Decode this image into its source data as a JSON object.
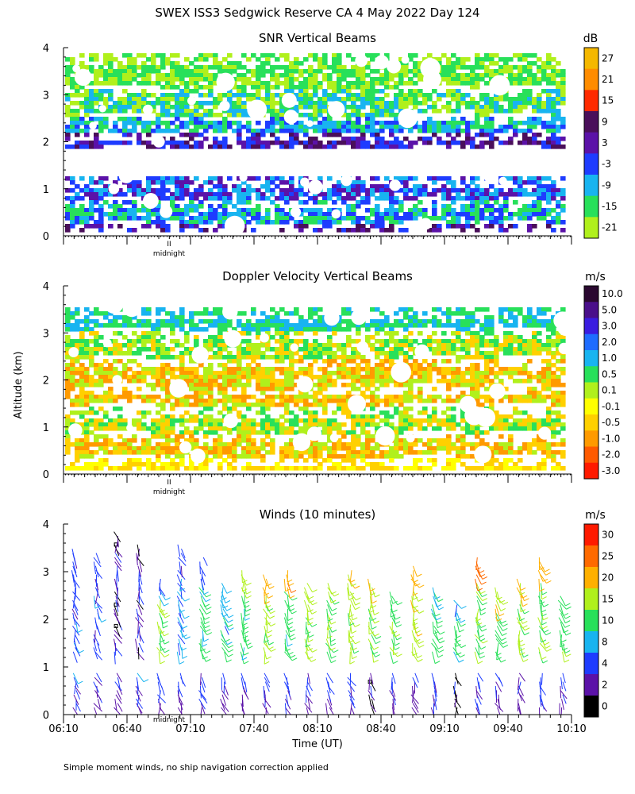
{
  "figure": {
    "title": "SWEX ISS3 Sedgwick Reserve CA   4 May 2022 Day 124",
    "ylabel": "Altitude (km)",
    "xlabel": "Time (UT)",
    "footnote": "Simple moment winds, no ship navigation correction applied",
    "midnight_label": "midnight",
    "midnight_marker": "II"
  },
  "chart_data": [
    {
      "type": "heatmap",
      "title": "SNR Vertical Beams",
      "colorbar_unit": "dB",
      "colorbar_labels": [
        "27",
        "21",
        "15",
        "9",
        "3",
        "-3",
        "-9",
        "-15",
        "-21"
      ],
      "colorbar_colors": [
        "#f5b800",
        "#ff8c00",
        "#ff2a00",
        "#4a0f5a",
        "#5b12a8",
        "#1e3cff",
        "#18b4f0",
        "#28e05a",
        "#b0f01c"
      ],
      "y_ticks": [
        "0",
        "1",
        "2",
        "3",
        "4"
      ],
      "ylim": [
        0,
        4
      ],
      "xlim": [
        6.1667,
        10.1667
      ],
      "layers": [
        {
          "y0": 0.1,
          "y1": 0.4,
          "colors": [
            "#4a0f5a",
            "#1e3cff",
            "#5b12a8"
          ]
        },
        {
          "y0": 0.3,
          "y1": 0.9,
          "colors": [
            "#18b4f0",
            "#1e3cff",
            "#28e05a"
          ]
        },
        {
          "y0": 0.8,
          "y1": 1.3,
          "colors": [
            "#1e3cff",
            "#5b12a8",
            "#18b4f0"
          ]
        },
        {
          "y0": 1.9,
          "y1": 2.3,
          "colors": [
            "#4a0f5a",
            "#5b12a8",
            "#1e3cff"
          ]
        },
        {
          "y0": 2.2,
          "y1": 2.7,
          "colors": [
            "#18b4f0",
            "#1e3cff",
            "#28e05a"
          ]
        },
        {
          "y0": 2.6,
          "y1": 3.3,
          "colors": [
            "#28e05a",
            "#b0f01c",
            "#18b4f0"
          ]
        },
        {
          "y0": 3.2,
          "y1": 3.9,
          "colors": [
            "#b0f01c",
            "#28e05a"
          ]
        }
      ]
    },
    {
      "type": "heatmap",
      "title": "Doppler Velocity Vertical Beams",
      "colorbar_unit": "m/s",
      "colorbar_labels": [
        "10.0",
        "5.0",
        "3.0",
        "2.0",
        "1.0",
        "0.5",
        "0.1",
        "-0.1",
        "-0.5",
        "-1.0",
        "-2.0",
        "-3.0"
      ],
      "colorbar_colors": [
        "#2a0830",
        "#4a0f8a",
        "#3a1ce0",
        "#1e6cff",
        "#18b4f0",
        "#28e05a",
        "#b0f01c",
        "#ffff00",
        "#ffd000",
        "#ff9a00",
        "#ff5a00",
        "#ff1a00"
      ],
      "y_ticks": [
        "0",
        "1",
        "2",
        "3",
        "4"
      ],
      "ylim": [
        0,
        4
      ],
      "xlim": [
        6.1667,
        10.1667
      ],
      "layers": [
        {
          "y0": 0.05,
          "y1": 0.5,
          "colors": [
            "#ffff00",
            "#ffd000"
          ]
        },
        {
          "y0": 0.4,
          "y1": 1.0,
          "colors": [
            "#ffd000",
            "#b0f01c",
            "#ff9a00"
          ]
        },
        {
          "y0": 0.9,
          "y1": 1.5,
          "colors": [
            "#b0f01c",
            "#28e05a",
            "#ffd000"
          ]
        },
        {
          "y0": 1.5,
          "y1": 2.0,
          "colors": [
            "#ffd000",
            "#ff9a00",
            "#b0f01c"
          ]
        },
        {
          "y0": 1.9,
          "y1": 2.6,
          "colors": [
            "#ff9a00",
            "#ffd000",
            "#b0f01c"
          ]
        },
        {
          "y0": 2.5,
          "y1": 3.2,
          "colors": [
            "#28e05a",
            "#b0f01c",
            "#ffd000"
          ]
        },
        {
          "y0": 3.1,
          "y1": 3.6,
          "colors": [
            "#28e05a",
            "#18b4f0"
          ]
        }
      ]
    },
    {
      "type": "scatter",
      "title": "Winds (10 minutes)",
      "colorbar_unit": "m/s",
      "colorbar_labels": [
        "30",
        "25",
        "20",
        "15",
        "10",
        "8",
        "4",
        "2",
        "0"
      ],
      "colorbar_colors": [
        "#ff1a00",
        "#ff6a00",
        "#ffb000",
        "#b0f01c",
        "#28e05a",
        "#18b4f0",
        "#1e3cff",
        "#5b12a8",
        "#000000"
      ],
      "y_ticks": [
        "0",
        "1",
        "2",
        "3",
        "4"
      ],
      "x_ticks": [
        "06:10",
        "06:40",
        "07:10",
        "07:40",
        "08:10",
        "08:40",
        "09:10",
        "09:40",
        "10:10"
      ],
      "ylim": [
        0,
        4
      ],
      "xlim": [
        6.1667,
        10.1667
      ],
      "profile_times": [
        6.25,
        6.42,
        6.58,
        6.75,
        6.92,
        7.08,
        7.25,
        7.42,
        7.58,
        7.75,
        7.92,
        8.08,
        8.25,
        8.42,
        8.58,
        8.75,
        8.92,
        9.08,
        9.25,
        9.42,
        9.58,
        9.75,
        9.92,
        10.08
      ],
      "upper_top_km": [
        3.5,
        3.4,
        3.9,
        3.6,
        2.9,
        3.6,
        3.3,
        2.8,
        3.1,
        3.0,
        3.1,
        2.8,
        2.8,
        3.1,
        2.9,
        2.6,
        3.2,
        2.7,
        2.4,
        3.3,
        2.7,
        2.9,
        3.3,
        2.5
      ],
      "upper_speed_mps": [
        6,
        6,
        3,
        4,
        15,
        8,
        12,
        10,
        12,
        16,
        12,
        16,
        14,
        16,
        16,
        14,
        18,
        13,
        11,
        14,
        13,
        16,
        15,
        13
      ],
      "top_speed_mps": [
        5,
        6,
        2,
        3,
        8,
        4,
        6,
        10,
        18,
        22,
        24,
        20,
        15,
        20,
        19,
        14,
        22,
        10,
        9,
        25,
        20,
        20,
        22,
        12
      ],
      "lower_speed_mps": [
        3,
        2,
        2,
        3,
        2,
        2,
        3,
        2,
        2,
        2,
        3,
        2,
        2,
        3,
        1,
        2,
        2,
        3,
        1,
        3,
        2,
        2,
        3,
        2
      ],
      "low_max_km": 0.9,
      "gap_km": [
        0.9,
        1.3
      ]
    }
  ]
}
